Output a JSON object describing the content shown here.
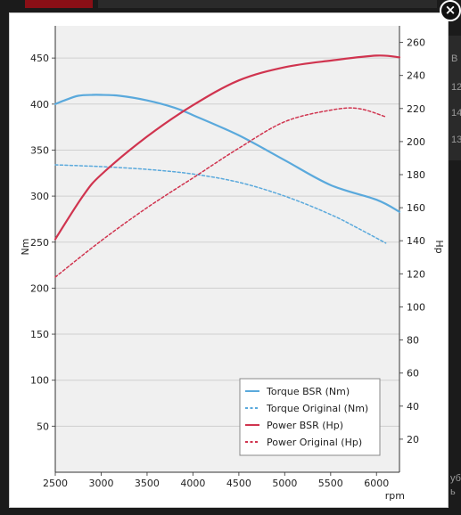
{
  "background": {
    "side_texts": [
      "B",
      "12",
      "14",
      "13"
    ],
    "bottom_texts": [
      "уб",
      "ь"
    ]
  },
  "modal": {
    "close_label": "×"
  },
  "colors": {
    "torque": "#5aa9dc",
    "power": "#d0344f",
    "plot_bg": "#f0f0f0",
    "grid": "#cfcfcf"
  },
  "chart_data": {
    "type": "line",
    "xlabel": "rpm",
    "ylabel_left": "Nm",
    "ylabel_right": "Hp",
    "xlim": [
      2500,
      6250
    ],
    "ylim_left": [
      0,
      485
    ],
    "ylim_right": [
      0,
      270
    ],
    "x_ticks": [
      2500,
      3000,
      3500,
      4000,
      4500,
      5000,
      5500,
      6000
    ],
    "y_left_ticks": [
      50,
      100,
      150,
      200,
      250,
      300,
      350,
      400,
      450
    ],
    "y_right_ticks": [
      20,
      40,
      60,
      80,
      100,
      120,
      140,
      160,
      180,
      200,
      220,
      240,
      260
    ],
    "grid": "horizontal",
    "legend_position": "bottom-right",
    "series": [
      {
        "name": "Torque BSR (Nm)",
        "axis": "left",
        "style": "solid",
        "color": "#5aa9dc",
        "x": [
          2500,
          2600,
          2750,
          2900,
          3000,
          3200,
          3500,
          3800,
          4000,
          4500,
          5000,
          5500,
          6000,
          6250
        ],
        "y": [
          400,
          404,
          409,
          410,
          410,
          409,
          404,
          396,
          388,
          366,
          339,
          312,
          296,
          283
        ]
      },
      {
        "name": "Torque Original (Nm)",
        "axis": "left",
        "style": "dashed",
        "color": "#5aa9dc",
        "x": [
          2500,
          3000,
          3500,
          4000,
          4500,
          5000,
          5500,
          5800,
          6100
        ],
        "y": [
          334,
          332,
          329,
          324,
          315,
          300,
          280,
          265,
          249
        ]
      },
      {
        "name": "Power BSR (Hp)",
        "axis": "right",
        "style": "solid",
        "color": "#d0344f",
        "x": [
          2500,
          2800,
          3000,
          3500,
          4000,
          4500,
          5000,
          5500,
          6000,
          6250
        ],
        "y": [
          141,
          167,
          180,
          203,
          222,
          237,
          245,
          249,
          252,
          251
        ]
      },
      {
        "name": "Power Original (Hp)",
        "axis": "right",
        "style": "dashed",
        "color": "#d0344f",
        "x": [
          2500,
          3000,
          3500,
          4000,
          4500,
          5000,
          5500,
          5800,
          6100
        ],
        "y": [
          118,
          140,
          160,
          178,
          196,
          212,
          219,
          220,
          215
        ]
      }
    ]
  }
}
